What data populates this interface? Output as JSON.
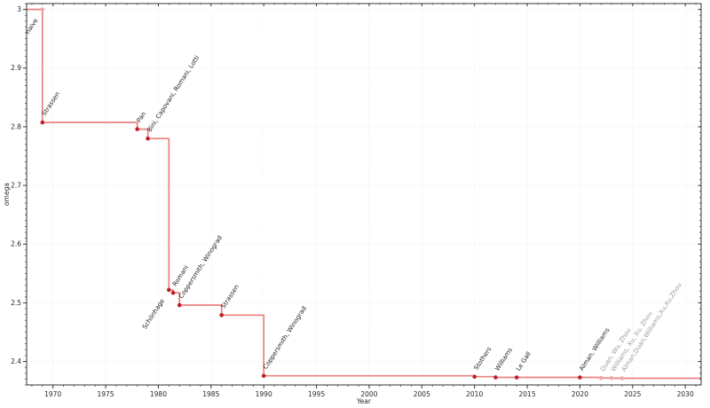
{
  "chart_data": {
    "type": "line",
    "subtype": "step-post-with-markers",
    "title": "",
    "xlabel": "Year",
    "ylabel": "omega",
    "xlim": [
      1967.5,
      2031.5
    ],
    "ylim": [
      2.36,
      3.01
    ],
    "grid": true,
    "legend": "none",
    "xticks": {
      "values": [
        1970,
        1975,
        1980,
        1985,
        1990,
        1995,
        2000,
        2005,
        2010,
        2015,
        2020,
        2025,
        2030
      ],
      "labels": [
        "1970",
        "1975",
        "1980",
        "1985",
        "1990",
        "1995",
        "2000",
        "2005",
        "2010",
        "2015",
        "2020",
        "2025",
        "2030"
      ],
      "minor_step": 1
    },
    "yticks": {
      "values": [
        2.4,
        2.5,
        2.6,
        2.7,
        2.8,
        2.9,
        3.0
      ],
      "labels": [
        "2.4",
        "2.5",
        "2.6",
        "2.7",
        "2.8",
        "2.9",
        "3"
      ],
      "minor_step": 0.01
    },
    "colors": {
      "line": "#ec8181",
      "marker": "#bf2026",
      "marker_muted": "#f2a6a6",
      "label": "#1c1c1c",
      "label_muted": "#9c9c9c",
      "grid": "#e7e7e7",
      "spine": "#333333"
    },
    "points": [
      {
        "label": "naive",
        "year": 1969,
        "omega": 3.0,
        "side": "below",
        "marker_muted": true
      },
      {
        "label": "Strassen",
        "year": 1969,
        "omega": 2.8074
      },
      {
        "label": "Pan",
        "year": 1978,
        "omega": 2.796
      },
      {
        "label": "Bini, Capovani, Romani, Lotti",
        "year": 1979,
        "omega": 2.7799
      },
      {
        "label": "Schönhage",
        "year": 1981,
        "omega": 2.522,
        "side": "below"
      },
      {
        "label": "Romani",
        "year": 1981.4,
        "omega": 2.517
      },
      {
        "label": "Coppersmith, Winograd",
        "year": 1982,
        "omega": 2.496
      },
      {
        "label": "Strassen",
        "year": 1986,
        "omega": 2.479
      },
      {
        "label": "Coppersmith, Winograd",
        "year": 1990,
        "omega": 2.3755
      },
      {
        "label": "Stothers",
        "year": 2010,
        "omega": 2.374
      },
      {
        "label": "Williams",
        "year": 2012,
        "omega": 2.3729
      },
      {
        "label": "Le Gall",
        "year": 2014,
        "omega": 2.3728639
      },
      {
        "label": "Alman, Williams",
        "year": 2020,
        "omega": 2.3728596
      },
      {
        "label": "Duan, Wu, Zhou",
        "year": 2022,
        "omega": 2.371866,
        "marker_muted": true,
        "label_muted": true
      },
      {
        "label": "Williams, Xu, Xu, Zhou",
        "year": 2023,
        "omega": 2.371552,
        "marker_muted": true,
        "label_muted": true
      },
      {
        "label": "Alman,Duan,Williams,Xu,Xu,Zhou",
        "year": 2024,
        "omega": 2.371339,
        "marker_muted": true,
        "label_muted": true
      }
    ]
  }
}
